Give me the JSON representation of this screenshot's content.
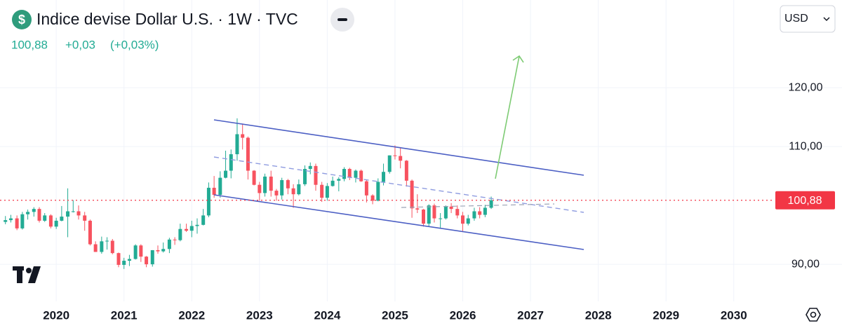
{
  "header": {
    "title": "Indice devise Dollar U.S. · 1W · TVC",
    "last": "100,88",
    "change": "+0,03",
    "change_pct": "(+0,03%)",
    "currency": "USD"
  },
  "chart_data": {
    "type": "candlestick",
    "up_color": "#22ab94",
    "down_color": "#f7525f",
    "grid": true,
    "xlim": [
      2019.17,
      2030.51
    ],
    "ylim": [
      83.7,
      134.9
    ],
    "xticks": [
      2020,
      2021,
      2022,
      2023,
      2024,
      2025,
      2026,
      2027,
      2028,
      2029,
      2030
    ],
    "yticks": [
      {
        "value": 90,
        "label": "90,00"
      },
      {
        "value": 110,
        "label": "110,00"
      },
      {
        "value": 120,
        "label": "120,00"
      }
    ],
    "price_line": {
      "value": 100.88,
      "label": "100,88",
      "color": "#f23645"
    },
    "x": [
      2019.25,
      2019.33,
      2019.42,
      2019.5,
      2019.58,
      2019.67,
      2019.75,
      2019.83,
      2019.92,
      2020.0,
      2020.08,
      2020.17,
      2020.25,
      2020.33,
      2020.42,
      2020.5,
      2020.58,
      2020.67,
      2020.75,
      2020.83,
      2020.92,
      2021.0,
      2021.08,
      2021.17,
      2021.25,
      2021.33,
      2021.42,
      2021.5,
      2021.58,
      2021.67,
      2021.75,
      2021.83,
      2021.92,
      2022.0,
      2022.08,
      2022.17,
      2022.25,
      2022.33,
      2022.42,
      2022.5,
      2022.58,
      2022.67,
      2022.75,
      2022.83,
      2022.92,
      2023.0,
      2023.08,
      2023.17,
      2023.25,
      2023.33,
      2023.42,
      2023.5,
      2023.58,
      2023.67,
      2023.75,
      2023.83,
      2023.92,
      2024.0,
      2024.08,
      2024.17,
      2024.25,
      2024.33,
      2024.42,
      2024.5,
      2024.58,
      2024.67,
      2024.75,
      2024.83,
      2024.92,
      2025.0,
      2025.08,
      2025.17,
      2025.25,
      2025.33,
      2025.42,
      2025.5,
      2025.58,
      2025.67,
      2025.75,
      2025.83,
      2025.92,
      2026.0,
      2026.08,
      2026.17,
      2026.25,
      2026.33,
      2026.42
    ],
    "open": [
      97.2,
      97.5,
      97.8,
      96.1,
      98.5,
      98.9,
      99.4,
      97.4,
      98.3,
      96.4,
      97.4,
      98.1,
      99.0,
      99.0,
      98.3,
      97.4,
      93.4,
      92.1,
      93.9,
      94.0,
      91.9,
      89.9,
      90.6,
      90.9,
      93.2,
      91.3,
      90.0,
      92.4,
      92.2,
      92.6,
      94.2,
      94.1,
      96.0,
      95.7,
      96.5,
      96.7,
      98.3,
      103.0,
      101.8,
      104.7,
      105.9,
      108.7,
      112.1,
      111.5,
      105.9,
      103.5,
      102.1,
      104.9,
      102.5,
      101.7,
      104.3,
      102.9,
      101.9,
      103.6,
      106.2,
      106.7,
      103.5,
      101.3,
      103.3,
      104.2,
      104.5,
      106.2,
      104.7,
      105.9,
      104.1,
      101.7,
      100.8,
      104.0,
      105.7,
      108.5,
      108.4,
      107.6,
      104.2,
      99.5,
      99.3,
      96.9,
      100.0,
      97.8,
      97.8,
      99.8,
      99.4,
      98.3,
      96.9,
      97.8,
      99.0,
      98.4,
      99.6
    ],
    "high": [
      98.2,
      98.4,
      98.3,
      98.9,
      99.3,
      99.7,
      99.7,
      98.7,
      98.5,
      97.9,
      99.9,
      102.9,
      100.9,
      100.0,
      98.9,
      97.6,
      93.9,
      94.7,
      94.6,
      94.3,
      92.0,
      91.1,
      91.6,
      93.4,
      93.4,
      91.4,
      92.4,
      93.2,
      93.7,
      94.5,
      94.6,
      96.9,
      96.9,
      97.4,
      97.8,
      99.4,
      103.9,
      105.0,
      105.8,
      109.3,
      109.5,
      114.8,
      113.9,
      111.7,
      106.0,
      104.0,
      105.4,
      105.9,
      102.8,
      104.7,
      104.5,
      103.6,
      104.4,
      106.8,
      107.3,
      107.1,
      104.0,
      103.8,
      104.9,
      104.8,
      106.5,
      106.4,
      106.1,
      106.1,
      104.4,
      101.9,
      104.6,
      107.1,
      108.5,
      110.2,
      109.9,
      107.7,
      104.4,
      101.9,
      99.4,
      100.2,
      100.3,
      98.7,
      100.0,
      100.4,
      100.0,
      98.9,
      98.4,
      99.6,
      99.7,
      100.1,
      101.5
    ],
    "low": [
      96.8,
      97.1,
      95.8,
      95.9,
      97.6,
      98.1,
      97.1,
      97.2,
      96.1,
      96.0,
      97.3,
      94.6,
      98.8,
      97.6,
      95.7,
      93.2,
      92.1,
      91.8,
      92.5,
      91.7,
      89.5,
      89.2,
      89.7,
      90.8,
      90.4,
      89.5,
      89.6,
      91.8,
      92.0,
      91.9,
      93.3,
      93.9,
      95.5,
      94.6,
      95.2,
      96.6,
      98.0,
      101.3,
      101.3,
      104.6,
      104.6,
      107.6,
      109.5,
      104.4,
      103.4,
      100.8,
      101.5,
      101.5,
      100.8,
      101.0,
      101.9,
      99.6,
      101.7,
      103.3,
      105.3,
      102.5,
      100.6,
      100.8,
      103.2,
      102.4,
      104.1,
      104.3,
      103.9,
      104.0,
      100.5,
      100.2,
      100.7,
      103.4,
      105.4,
      107.8,
      106.3,
      103.2,
      97.9,
      98.7,
      96.4,
      96.4,
      97.1,
      96.2,
      97.6,
      98.7,
      97.8,
      95.5,
      96.6,
      97.4,
      97.8,
      98.0,
      99.4
    ],
    "close": [
      97.5,
      97.8,
      96.1,
      98.5,
      98.9,
      99.4,
      97.4,
      98.3,
      96.4,
      97.4,
      98.1,
      99.0,
      99.0,
      98.3,
      97.4,
      93.4,
      92.1,
      93.9,
      94.0,
      91.9,
      89.9,
      90.6,
      90.9,
      93.2,
      91.3,
      90.0,
      92.4,
      92.2,
      92.6,
      94.2,
      94.1,
      96.0,
      95.7,
      96.5,
      96.7,
      98.3,
      103.0,
      101.8,
      104.7,
      105.9,
      108.7,
      112.1,
      111.5,
      105.9,
      103.5,
      102.1,
      104.9,
      102.5,
      101.7,
      104.3,
      102.9,
      101.9,
      103.6,
      106.2,
      106.7,
      103.5,
      101.3,
      103.3,
      104.2,
      104.5,
      106.2,
      104.7,
      105.9,
      104.1,
      101.7,
      100.8,
      104.0,
      105.7,
      108.5,
      108.4,
      107.6,
      104.2,
      99.5,
      99.3,
      96.9,
      100.0,
      97.8,
      97.8,
      99.8,
      99.4,
      98.3,
      96.9,
      97.8,
      99.0,
      98.4,
      99.6,
      100.88
    ]
  }
}
